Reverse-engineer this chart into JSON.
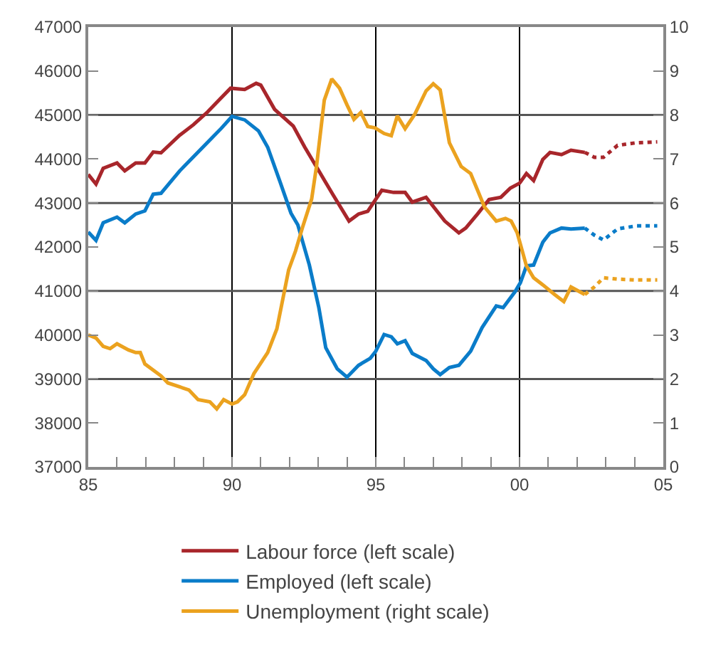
{
  "chart_data": {
    "type": "line",
    "xlim": [
      1985,
      2005
    ],
    "xticks": [
      {
        "value": 1985,
        "label": "85"
      },
      {
        "value": 1986,
        "label": null
      },
      {
        "value": 1987,
        "label": null
      },
      {
        "value": 1988,
        "label": null
      },
      {
        "value": 1989,
        "label": null
      },
      {
        "value": 1990,
        "label": "90"
      },
      {
        "value": 1991,
        "label": null
      },
      {
        "value": 1992,
        "label": null
      },
      {
        "value": 1993,
        "label": null
      },
      {
        "value": 1994,
        "label": null
      },
      {
        "value": 1995,
        "label": "95"
      },
      {
        "value": 1996,
        "label": null
      },
      {
        "value": 1997,
        "label": null
      },
      {
        "value": 1998,
        "label": null
      },
      {
        "value": 1999,
        "label": null
      },
      {
        "value": 2000,
        "label": "00"
      },
      {
        "value": 2001,
        "label": null
      },
      {
        "value": 2002,
        "label": null
      },
      {
        "value": 2003,
        "label": null
      },
      {
        "value": 2004,
        "label": null
      },
      {
        "value": 2005,
        "label": "05"
      }
    ],
    "ylim": [
      37000,
      47000
    ],
    "yticks": [
      37000,
      38000,
      39000,
      40000,
      41000,
      42000,
      43000,
      44000,
      45000,
      46000,
      47000
    ],
    "y2lim": [
      0,
      10
    ],
    "y2ticks": [
      0,
      1,
      2,
      3,
      4,
      5,
      6,
      7,
      8,
      9,
      10
    ],
    "grid": true,
    "legend": "bottom",
    "series": [
      {
        "name": "Labour force (left scale)",
        "color": "#a8262b",
        "line_style": "solid",
        "x": [
          1985.0,
          1985.27,
          1985.52,
          1986.0,
          1986.27,
          1986.65,
          1986.97,
          1987.26,
          1987.53,
          1988.18,
          1988.66,
          1989.15,
          1989.55,
          1989.95,
          1990.44,
          1990.84,
          1991.0,
          1991.48,
          1992.13,
          1992.53,
          1993.02,
          1993.5,
          1994.07,
          1994.4,
          1994.72,
          1995.21,
          1995.62,
          1996.02,
          1996.27,
          1996.75,
          1997.4,
          1997.89,
          1998.13,
          1998.54,
          1998.94,
          1999.35,
          1999.68,
          2000.0,
          2000.24,
          2000.49,
          2000.81,
          2001.06,
          2001.46,
          2001.79,
          2002.27
        ],
        "values": [
          43650,
          43430,
          43790,
          43910,
          43730,
          43910,
          43910,
          44160,
          44140,
          44540,
          44780,
          45070,
          45340,
          45610,
          45580,
          45720,
          45680,
          45130,
          44750,
          44270,
          43730,
          43200,
          42590,
          42750,
          42810,
          43290,
          43240,
          43240,
          43020,
          43130,
          42590,
          42320,
          42430,
          42750,
          43080,
          43130,
          43340,
          43450,
          43670,
          43510,
          43990,
          44150,
          44100,
          44200,
          44150
        ]
      },
      {
        "color": "#a8262b",
        "line_style": "dotted",
        "x": [
          2002.27,
          2002.6,
          2002.92,
          2003.41,
          2004.06,
          2004.79
        ],
        "values": [
          44150,
          44040,
          44040,
          44310,
          44370,
          44390
        ]
      },
      {
        "name": "Employed (left scale)",
        "color": "#0a7cc9",
        "line_style": "solid",
        "x": [
          1985.0,
          1985.27,
          1985.52,
          1986.0,
          1986.27,
          1986.65,
          1986.97,
          1987.26,
          1987.53,
          1988.18,
          1988.66,
          1989.15,
          1989.63,
          1990.0,
          1990.44,
          1990.92,
          1991.24,
          1991.65,
          1992.05,
          1992.29,
          1992.69,
          1993.02,
          1993.26,
          1993.66,
          1994.0,
          1994.4,
          1994.81,
          1995.0,
          1995.29,
          1995.54,
          1995.75,
          1996.02,
          1996.27,
          1996.75,
          1997.0,
          1997.24,
          1997.56,
          1997.89,
          1998.3,
          1998.7,
          1999.19,
          1999.43,
          1999.84,
          2000.03,
          2000.24,
          2000.49,
          2000.81,
          2001.06,
          2001.46,
          2001.79,
          2002.27
        ],
        "values": [
          42340,
          42150,
          42550,
          42680,
          42550,
          42750,
          42820,
          43200,
          43220,
          43730,
          44050,
          44380,
          44700,
          44970,
          44890,
          44640,
          44270,
          43520,
          42770,
          42500,
          41590,
          40620,
          39710,
          39230,
          39040,
          39310,
          39470,
          39630,
          40010,
          39960,
          39800,
          39870,
          39580,
          39420,
          39230,
          39100,
          39260,
          39310,
          39630,
          40170,
          40660,
          40620,
          40980,
          41190,
          41570,
          41590,
          42110,
          42320,
          42430,
          42410,
          42430
        ]
      },
      {
        "color": "#0a7cc9",
        "line_style": "dotted",
        "x": [
          2002.27,
          2002.6,
          2002.92,
          2003.41,
          2004.06,
          2004.79
        ],
        "values": [
          42430,
          42270,
          42160,
          42410,
          42480,
          42480
        ]
      },
      {
        "name": "Unemployment (right scale)",
        "color": "#eba21f",
        "line_style": "solid",
        "axis": "y2",
        "x": [
          1985.0,
          1985.27,
          1985.52,
          1985.76,
          1986.0,
          1986.4,
          1986.65,
          1986.81,
          1986.97,
          1987.53,
          1987.77,
          1988.5,
          1988.82,
          1989.23,
          1989.47,
          1989.71,
          1990.0,
          1990.19,
          1990.44,
          1990.76,
          1991.08,
          1991.24,
          1991.56,
          1991.97,
          1992.21,
          1992.45,
          1992.77,
          1992.94,
          1993.21,
          1993.47,
          1993.74,
          1994.0,
          1994.24,
          1994.48,
          1994.72,
          1994.97,
          1995.29,
          1995.54,
          1995.75,
          1996.02,
          1996.35,
          1996.75,
          1997.0,
          1997.24,
          1997.56,
          1997.97,
          1998.3,
          1998.54,
          1998.78,
          1999.19,
          1999.51,
          1999.71,
          1999.92,
          2000.24,
          2000.49,
          2000.81,
          2001.22,
          2001.54,
          2001.79,
          2002.27
        ],
        "values": [
          3.0,
          2.93,
          2.74,
          2.69,
          2.8,
          2.66,
          2.6,
          2.6,
          2.34,
          2.07,
          1.91,
          1.75,
          1.53,
          1.48,
          1.32,
          1.53,
          1.43,
          1.48,
          1.64,
          2.12,
          2.44,
          2.6,
          3.14,
          4.48,
          4.91,
          5.44,
          6.09,
          6.84,
          8.34,
          8.82,
          8.61,
          8.23,
          7.9,
          8.06,
          7.74,
          7.71,
          7.58,
          7.53,
          7.98,
          7.69,
          8.01,
          8.55,
          8.71,
          8.57,
          7.37,
          6.83,
          6.67,
          6.29,
          5.91,
          5.59,
          5.65,
          5.59,
          5.32,
          4.57,
          4.3,
          4.14,
          3.92,
          3.76,
          4.09,
          3.92
        ]
      },
      {
        "color": "#eba21f",
        "line_style": "dotted",
        "axis": "y2",
        "x": [
          2002.27,
          2002.6,
          2002.92,
          2003.41,
          2004.06,
          2004.79
        ],
        "values": [
          3.92,
          4.09,
          4.3,
          4.27,
          4.25,
          4.25
        ]
      }
    ]
  }
}
